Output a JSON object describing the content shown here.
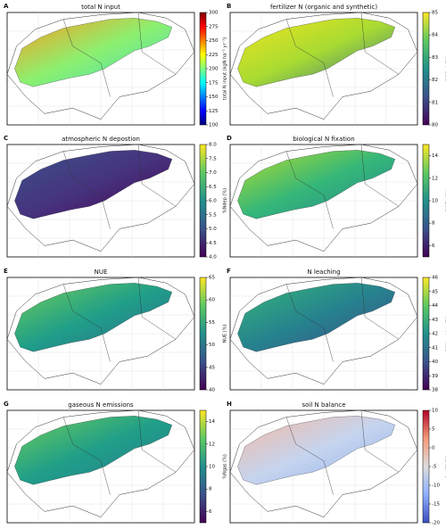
{
  "panels": [
    {
      "label": "A",
      "title": "total N input",
      "map_colors": [
        "#ff9a1a",
        "#8cf070",
        "#3fdcc0"
      ],
      "colorbar": {
        "label": "total N input (kgN ha⁻¹ yr⁻¹)",
        "colormap": "jet",
        "lim": [
          100,
          300
        ],
        "ticks": [
          100,
          125,
          150,
          175,
          200,
          225,
          250,
          275,
          300
        ]
      }
    },
    {
      "label": "B",
      "title": "fertilizer N (organic and synthetic)",
      "map_colors": [
        "#f2e41e",
        "#a8db32",
        "#2e6e8e"
      ],
      "colorbar": {
        "label": "%Nfert (%)",
        "colormap": "viridis",
        "lim": [
          80,
          85
        ],
        "ticks": [
          80,
          81,
          82,
          83,
          84,
          85
        ]
      }
    },
    {
      "label": "C",
      "title": "atmospheric N depostion",
      "map_colors": [
        "#3b528b",
        "#46337e",
        "#440154"
      ],
      "colorbar": {
        "label": "%Ndep (%)",
        "colormap": "viridis",
        "lim": [
          4,
          8
        ],
        "ticks": [
          {
            "value": 4,
            "label": "4.0"
          },
          4.5,
          {
            "value": 5,
            "label": "5.0"
          },
          5.5,
          {
            "value": 6,
            "label": "6.0"
          },
          6.5,
          {
            "value": 7,
            "label": "7.0"
          },
          7.5,
          {
            "value": 8,
            "label": "8.0"
          }
        ]
      }
    },
    {
      "label": "D",
      "title": "biological N fixation",
      "map_colors": [
        "#b5de2b",
        "#35b779",
        "#26828e"
      ],
      "colorbar": {
        "label": "%Nfix (%)",
        "colormap": "viridis",
        "lim": [
          5,
          15
        ],
        "ticks": [
          6,
          8,
          10,
          12,
          14
        ]
      }
    },
    {
      "label": "E",
      "title": "NUE",
      "map_colors": [
        "#6ece58",
        "#1f9e89",
        "#31688e"
      ],
      "colorbar": {
        "label": "NUE (%)",
        "colormap": "viridis",
        "lim": [
          40,
          65
        ],
        "ticks": [
          40,
          45,
          50,
          55,
          60,
          65
        ]
      }
    },
    {
      "label": "F",
      "title": "N leaching",
      "map_colors": [
        "#35b779",
        "#26828e",
        "#3e4989"
      ],
      "colorbar": {
        "label": "%Nleaching (%)",
        "colormap": "viridis",
        "lim": [
          38,
          46
        ],
        "ticks": [
          38,
          39,
          40,
          41,
          42,
          43,
          44,
          45,
          46
        ]
      }
    },
    {
      "label": "G",
      "title": "gaseous N emissions",
      "map_colors": [
        "#6ece58",
        "#1f9e89",
        "#2a788e"
      ],
      "colorbar": {
        "label": "%Ngas (%)",
        "colormap": "viridis",
        "lim": [
          5,
          15
        ],
        "ticks": [
          6,
          8,
          10,
          12,
          14
        ]
      }
    },
    {
      "label": "H",
      "title": "soil N balance",
      "map_colors": [
        "#f4b9a0",
        "#c6d4ee",
        "#8eb2f0"
      ],
      "colorbar": {
        "label": "ΔsoilN (%)",
        "colormap": "coolwarm",
        "lim": [
          -20,
          10
        ],
        "ticks": [
          -20,
          -15,
          -10,
          -5,
          0,
          5,
          10
        ]
      }
    }
  ]
}
